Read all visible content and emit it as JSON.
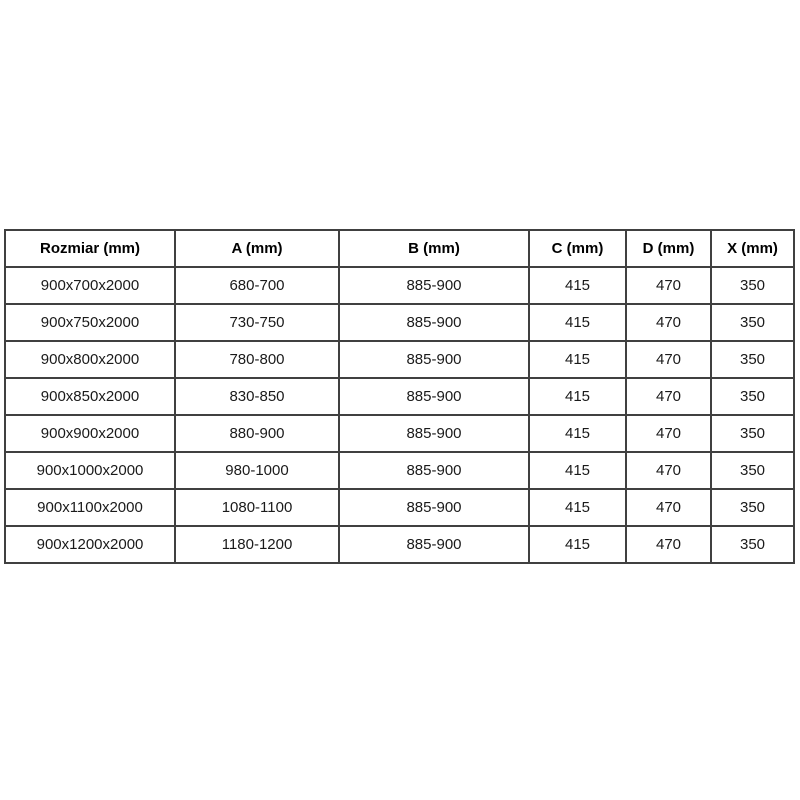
{
  "table": {
    "name": "size-specification-table",
    "headers": [
      "Rozmiar (mm)",
      "A (mm)",
      "B (mm)",
      "C (mm)",
      "D (mm)",
      "X (mm)"
    ],
    "rows": [
      [
        "900x700x2000",
        "680-700",
        "885-900",
        "415",
        "470",
        "350"
      ],
      [
        "900x750x2000",
        "730-750",
        "885-900",
        "415",
        "470",
        "350"
      ],
      [
        "900x800x2000",
        "780-800",
        "885-900",
        "415",
        "470",
        "350"
      ],
      [
        "900x850x2000",
        "830-850",
        "885-900",
        "415",
        "470",
        "350"
      ],
      [
        "900x900x2000",
        "880-900",
        "885-900",
        "415",
        "470",
        "350"
      ],
      [
        "900x1000x2000",
        "980-1000",
        "885-900",
        "415",
        "470",
        "350"
      ],
      [
        "900x1100x2000",
        "1080-1100",
        "885-900",
        "415",
        "470",
        "350"
      ],
      [
        "900x1200x2000",
        "1180-1200",
        "885-900",
        "415",
        "470",
        "350"
      ]
    ],
    "colors": {
      "border": "#404040",
      "text": "#1a1a1a",
      "background": "#ffffff"
    }
  }
}
